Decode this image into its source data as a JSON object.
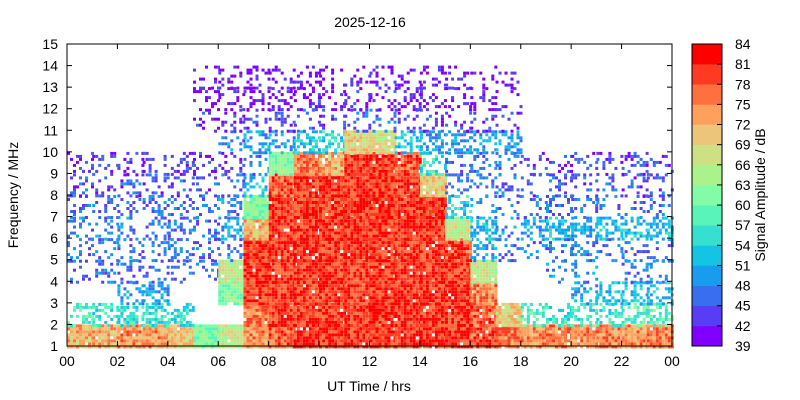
{
  "chart_data": {
    "type": "heatmap",
    "title": "2025-12-16",
    "xlabel": "UT Time / hrs",
    "ylabel": "Frequency / MHz",
    "xlim": [
      0,
      24
    ],
    "ylim": [
      1,
      15
    ],
    "x_tick_labels": [
      "00",
      "02",
      "04",
      "06",
      "08",
      "10",
      "12",
      "14",
      "16",
      "18",
      "20",
      "22",
      "00"
    ],
    "y_tick_labels": [
      "1",
      "2",
      "3",
      "4",
      "5",
      "6",
      "7",
      "8",
      "9",
      "10",
      "11",
      "12",
      "13",
      "14",
      "15"
    ],
    "colorbar": {
      "label": "Signal Amplitude / dB",
      "range": [
        39,
        84
      ],
      "tick_labels": [
        "84",
        "81",
        "78",
        "75",
        "72",
        "69",
        "66",
        "63",
        "60",
        "57",
        "54",
        "51",
        "48",
        "45",
        "42",
        "39"
      ],
      "band_colors": [
        "#7f00ff",
        "#5a3cf6",
        "#3a6ef0",
        "#189cee",
        "#14c4e4",
        "#36e0d0",
        "#58f5b8",
        "#84fba6",
        "#aaf28c",
        "#cde184",
        "#ecc57a",
        "#ffa05c",
        "#ff7040",
        "#ff3a22",
        "#ff0000"
      ]
    },
    "grid_note": "amplitude in dB per 1-hour x 1-MHz bin; rows = frequency bins 1-2 ... 14-15 MHz, columns = hours 0..23; null = no data",
    "hours": [
      0,
      1,
      2,
      3,
      4,
      5,
      6,
      7,
      8,
      9,
      10,
      11,
      12,
      13,
      14,
      15,
      16,
      17,
      18,
      19,
      20,
      21,
      22,
      23
    ],
    "freq_bins": [
      1,
      2,
      3,
      4,
      5,
      6,
      7,
      8,
      9,
      10,
      11,
      12,
      13,
      14
    ],
    "values": [
      [
        72,
        72,
        74,
        74,
        70,
        62,
        66,
        74,
        78,
        80,
        80,
        80,
        80,
        80,
        80,
        80,
        78,
        76,
        74,
        74,
        74,
        76,
        74,
        76
      ],
      [
        58,
        56,
        55,
        55,
        55,
        null,
        null,
        76,
        80,
        80,
        80,
        80,
        80,
        80,
        80,
        80,
        78,
        70,
        58,
        56,
        56,
        56,
        58,
        58
      ],
      [
        null,
        null,
        50,
        50,
        null,
        null,
        62,
        80,
        80,
        80,
        80,
        80,
        80,
        80,
        80,
        80,
        76,
        null,
        null,
        null,
        50,
        52,
        52,
        52
      ],
      [
        46,
        46,
        46,
        46,
        46,
        46,
        66,
        80,
        80,
        80,
        80,
        80,
        80,
        80,
        80,
        80,
        66,
        null,
        null,
        48,
        48,
        null,
        48,
        48
      ],
      [
        47,
        47,
        47,
        47,
        47,
        46,
        48,
        80,
        80,
        80,
        80,
        80,
        80,
        80,
        80,
        78,
        50,
        46,
        47,
        47,
        47,
        47,
        47,
        47
      ],
      [
        48,
        48,
        48,
        47,
        47,
        46,
        50,
        72,
        80,
        80,
        80,
        80,
        80,
        80,
        80,
        66,
        52,
        48,
        50,
        52,
        50,
        52,
        52,
        52
      ],
      [
        46,
        46,
        46,
        46,
        46,
        46,
        48,
        62,
        80,
        80,
        80,
        80,
        80,
        80,
        80,
        54,
        48,
        47,
        46,
        46,
        47,
        46,
        46,
        46
      ],
      [
        45,
        45,
        45,
        45,
        45,
        45,
        46,
        52,
        78,
        80,
        80,
        80,
        80,
        80,
        70,
        48,
        47,
        46,
        45,
        45,
        45,
        45,
        45,
        45
      ],
      [
        43,
        43,
        43,
        43,
        43,
        43,
        44,
        48,
        62,
        76,
        72,
        80,
        80,
        78,
        56,
        46,
        46,
        46,
        44,
        44,
        44,
        44,
        44,
        44
      ],
      [
        null,
        null,
        null,
        null,
        null,
        null,
        48,
        50,
        50,
        52,
        54,
        70,
        68,
        52,
        50,
        50,
        50,
        50,
        null,
        null,
        null,
        null,
        null,
        null
      ],
      [
        null,
        null,
        null,
        null,
        null,
        42,
        42,
        44,
        44,
        46,
        44,
        46,
        46,
        44,
        44,
        44,
        44,
        42,
        null,
        null,
        null,
        null,
        null,
        null
      ],
      [
        null,
        null,
        null,
        null,
        null,
        41,
        41,
        41,
        41,
        42,
        41,
        42,
        42,
        41,
        41,
        41,
        41,
        41,
        null,
        null,
        null,
        null,
        null,
        null
      ],
      [
        null,
        null,
        null,
        null,
        null,
        41,
        41,
        41,
        41,
        41,
        41,
        41,
        41,
        41,
        41,
        41,
        41,
        41,
        null,
        null,
        null,
        null,
        null,
        null
      ],
      [
        null,
        null,
        null,
        null,
        null,
        null,
        null,
        null,
        null,
        null,
        null,
        null,
        null,
        null,
        null,
        null,
        null,
        null,
        null,
        null,
        null,
        null,
        null,
        null
      ]
    ]
  }
}
